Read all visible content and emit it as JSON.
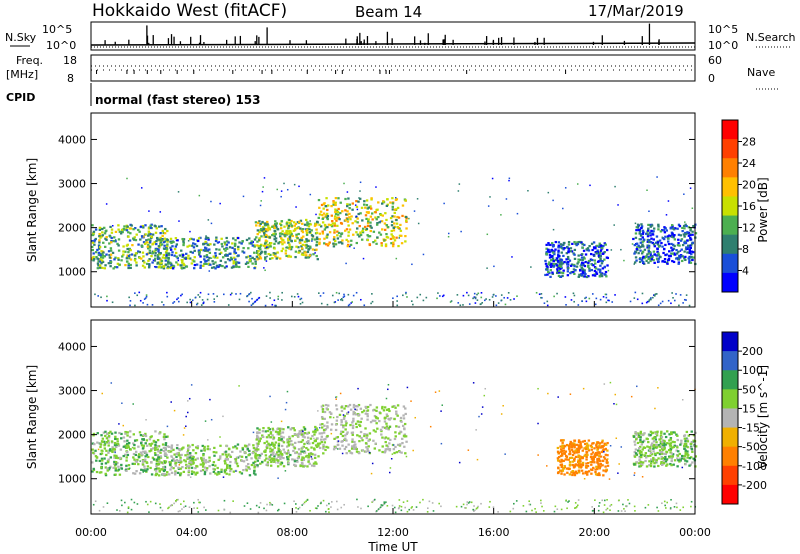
{
  "header": {
    "station": "Hokkaido West (fitACF)",
    "beam": "Beam 14",
    "date": "17/Mar/2019"
  },
  "top_panel": {
    "left_label": "N.Sky",
    "right_label": "N.Search",
    "ticks_left": [
      "10^5",
      "10^0"
    ],
    "ticks_right": [
      "10^5",
      "10^0"
    ]
  },
  "freq_panel": {
    "label_line1": "Freq.",
    "label_line2": "[MHz]",
    "ticks_left": [
      "18",
      "8"
    ],
    "right_label": "Nave",
    "ticks_right": [
      "60",
      "0"
    ]
  },
  "cpid_panel": {
    "label": "CPID",
    "mode_text": "normal (fast stereo) 153"
  },
  "colors": {
    "power_scale": [
      "#0000ff",
      "#1a4fd8",
      "#2f7f6f",
      "#4caf50",
      "#c8e000",
      "#ffc000",
      "#ff8000",
      "#ff4000",
      "#ff0000"
    ],
    "velocity_scale": [
      "#0000c8",
      "#3264c8",
      "#32a050",
      "#7fd030",
      "#b4b4b4",
      "#f0b000",
      "#ff8000",
      "#ff4000",
      "#ff0000"
    ]
  },
  "chart_data": [
    {
      "type": "heatmap",
      "name": "Power",
      "ylabel": "Slant Range [km]",
      "yticks": [
        1000,
        2000,
        3000,
        4000
      ],
      "ylim": [
        200,
        4600
      ],
      "xlim": [
        0,
        24
      ],
      "colorbar_label": "Power [dB]",
      "colorbar_ticks": [
        4,
        8,
        12,
        16,
        20,
        24,
        28
      ],
      "colorbar_range": [
        0,
        32
      ],
      "regions": [
        {
          "t0": 0.0,
          "t1": 3.0,
          "r0": 1100,
          "r1": 2100,
          "value": 12
        },
        {
          "t0": 2.5,
          "t1": 6.5,
          "r0": 1100,
          "r1": 1800,
          "value": 10
        },
        {
          "t0": 6.5,
          "t1": 9.0,
          "r0": 1300,
          "r1": 2200,
          "value": 14
        },
        {
          "t0": 9.0,
          "t1": 12.5,
          "r0": 1600,
          "r1": 2700,
          "value": 16
        },
        {
          "t0": 18.0,
          "t1": 20.5,
          "r0": 900,
          "r1": 1700,
          "value": 6
        },
        {
          "t0": 21.5,
          "t1": 24.0,
          "r0": 1200,
          "r1": 2100,
          "value": 6
        }
      ]
    },
    {
      "type": "heatmap",
      "name": "Velocity",
      "ylabel": "Slant Range [km]",
      "yticks": [
        1000,
        2000,
        3000,
        4000
      ],
      "ylim": [
        200,
        4600
      ],
      "xlim": [
        0,
        24
      ],
      "colorbar_label": "Velocity [m s^-1]",
      "colorbar_ticks": [
        200,
        100,
        50,
        15,
        -15,
        -50,
        -100,
        -200
      ],
      "regions": [
        {
          "t0": 0.0,
          "t1": 3.0,
          "r0": 1100,
          "r1": 2100,
          "value": 0
        },
        {
          "t0": 2.5,
          "t1": 6.5,
          "r0": 1100,
          "r1": 1800,
          "value": -5
        },
        {
          "t0": 6.5,
          "t1": 9.0,
          "r0": 1300,
          "r1": 2200,
          "value": -10
        },
        {
          "t0": 9.0,
          "t1": 12.5,
          "r0": 1600,
          "r1": 2700,
          "value": -20
        },
        {
          "t0": 18.5,
          "t1": 20.5,
          "r0": 1100,
          "r1": 1900,
          "value": -120
        },
        {
          "t0": 21.5,
          "t1": 24.0,
          "r0": 1300,
          "r1": 2100,
          "value": 0
        }
      ]
    }
  ],
  "xaxis": {
    "label": "Time UT",
    "ticks": [
      "00:00",
      "04:00",
      "08:00",
      "12:00",
      "16:00",
      "20:00",
      "00:00"
    ]
  }
}
